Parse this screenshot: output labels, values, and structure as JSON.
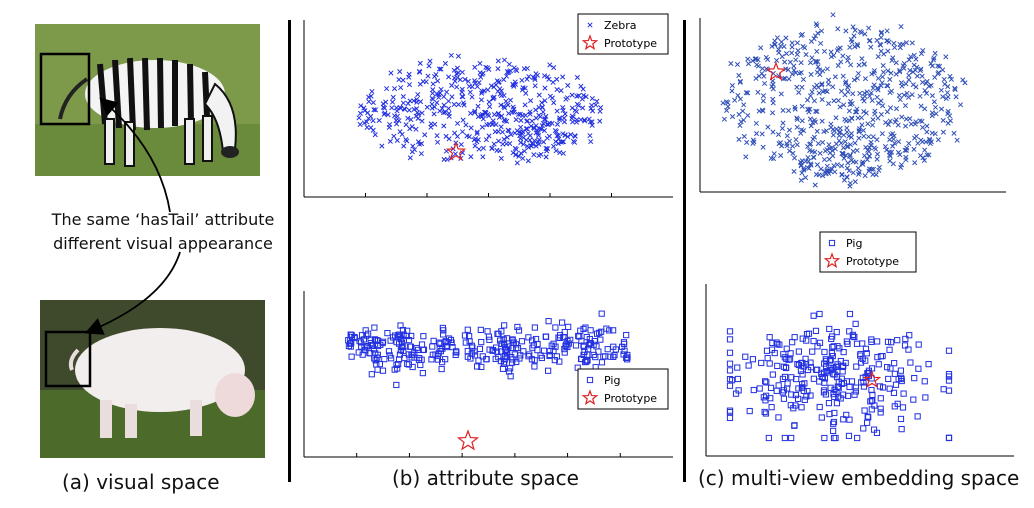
{
  "attribute_note": {
    "line1": "The same ‘hasTail’ attribute",
    "line2": "different visual appearance"
  },
  "captions": {
    "a": "(a) visual space",
    "b": "(b) attribute space",
    "c": "(c) multi-view embedding space"
  },
  "colors": {
    "points": "#2230e0",
    "points_c": "#3050b8",
    "prototype": "#e02020"
  },
  "chart_data": [
    {
      "type": "scatter",
      "panel": "b-top",
      "legend": [
        "Zebra",
        "Prototype"
      ],
      "legend_position": "top-right",
      "marker": "x",
      "series": [
        {
          "name": "Zebra",
          "x": [],
          "y": []
        },
        {
          "name": "Prototype",
          "x": [],
          "y": []
        }
      ]
    },
    {
      "type": "scatter",
      "panel": "b-bottom",
      "legend": [
        "Pig",
        "Prototype"
      ],
      "legend_position": "bottom-right",
      "marker": "square",
      "series": [
        {
          "name": "Pig",
          "x": [],
          "y": []
        },
        {
          "name": "Prototype",
          "x": [],
          "y": []
        }
      ]
    },
    {
      "type": "scatter",
      "panel": "c-top",
      "marker": "x",
      "series": [
        {
          "name": "Zebra",
          "x": [],
          "y": []
        },
        {
          "name": "Prototype",
          "x": [],
          "y": []
        }
      ]
    },
    {
      "type": "scatter",
      "panel": "c-bottom",
      "legend": [
        "Pig",
        "Prototype"
      ],
      "legend_position": "top",
      "marker": "square",
      "series": [
        {
          "name": "Pig",
          "x": [],
          "y": []
        },
        {
          "name": "Prototype",
          "x": [],
          "y": []
        }
      ]
    }
  ]
}
